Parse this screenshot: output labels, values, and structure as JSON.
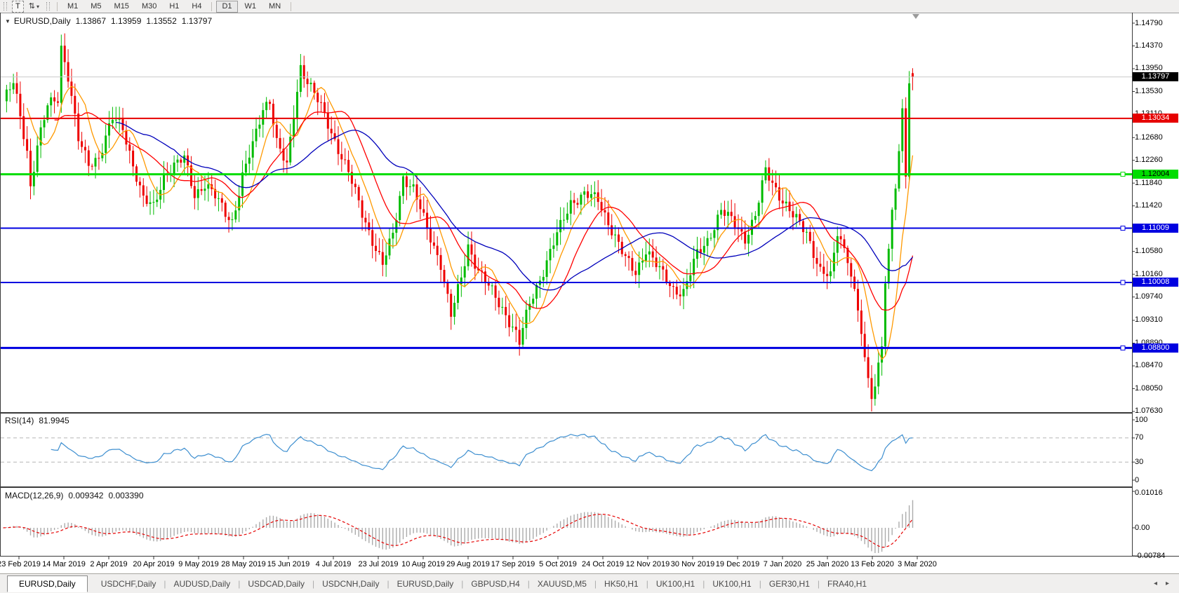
{
  "toolbar": {
    "text_tool_label": "T",
    "arrows_icon_glyph": "⇅",
    "caret_glyph": "▾",
    "timeframes": [
      "M1",
      "M5",
      "M15",
      "M30",
      "H1",
      "H4",
      "D1",
      "W1",
      "MN"
    ],
    "active_timeframe": "D1"
  },
  "chart": {
    "context_arrow_glyph": "▼",
    "symbol_label": "EURUSD,Daily",
    "ohlc": {
      "open": "1.13867",
      "high": "1.13959",
      "low": "1.13552",
      "close": "1.13797"
    },
    "price_ticks": [
      "1.14790",
      "1.14370",
      "1.13950",
      "1.13530",
      "1.13110",
      "1.12680",
      "1.12260",
      "1.11840",
      "1.11420",
      "1.11000",
      "1.10580",
      "1.10160",
      "1.09740",
      "1.09310",
      "1.08890",
      "1.08470",
      "1.08050",
      "1.07630"
    ],
    "bid_badge": {
      "value": 1.13797,
      "label": "1.13797",
      "bg": "#000000",
      "fg": "#ffffff",
      "line_color": "#c9c9c9"
    },
    "hlines": [
      {
        "value": 1.13034,
        "label": "1.13034",
        "color": "#e60000",
        "width": 2,
        "handle": false,
        "fg": "#ffffff"
      },
      {
        "value": 1.12004,
        "label": "1.12004",
        "color": "#00dd00",
        "width": 3,
        "handle": true,
        "fg": "#000000"
      },
      {
        "value": 1.11009,
        "label": "1.11009",
        "color": "#0000e0",
        "width": 2,
        "handle": true,
        "fg": "#ffffff"
      },
      {
        "value": 1.10008,
        "label": "1.10008",
        "color": "#0000e0",
        "width": 2,
        "handle": true,
        "fg": "#ffffff"
      },
      {
        "value": 1.088,
        "label": "1.08800",
        "color": "#0000e0",
        "width": 3,
        "handle": true,
        "fg": "#ffffff"
      }
    ],
    "time_labels": [
      "23 Feb 2019",
      "14 Mar 2019",
      "2 Apr 2019",
      "20 Apr 2019",
      "9 May 2019",
      "28 May 2019",
      "15 Jun 2019",
      "4 Jul 2019",
      "23 Jul 2019",
      "10 Aug 2019",
      "29 Aug 2019",
      "17 Sep 2019",
      "5 Oct 2019",
      "24 Oct 2019",
      "12 Nov 2019",
      "30 Nov 2019",
      "19 Dec 2019",
      "7 Jan 2020",
      "25 Jan 2020",
      "13 Feb 2020",
      "3 Mar 2020"
    ]
  },
  "rsi": {
    "name_label": "RSI(14)",
    "value": "81.9945",
    "period": 14,
    "levels": [
      70,
      30
    ],
    "line_color": "#3e8fd0",
    "axis_ticks": [
      {
        "value": 100,
        "label": "100"
      },
      {
        "value": 70,
        "label": "70"
      },
      {
        "value": 30,
        "label": "30"
      },
      {
        "value": 0,
        "label": "0"
      }
    ]
  },
  "macd": {
    "name_label": "MACD(12,26,9)",
    "value_main": "0.009342",
    "value_signal": "0.003390",
    "fast": 12,
    "slow": 26,
    "signal": 9,
    "histogram_color": "#ababab",
    "signal_color": "#e60000",
    "axis_ticks": [
      {
        "value": 0.01016,
        "label": "0.01016"
      },
      {
        "value": 0,
        "label": "0.00"
      },
      {
        "value": -0.00784,
        "label": "-0.00784"
      }
    ]
  },
  "tabs": {
    "items": [
      {
        "label": "EURUSD,Daily",
        "active": true
      },
      {
        "label": "USDCHF,Daily",
        "active": false
      },
      {
        "label": "AUDUSD,Daily",
        "active": false
      },
      {
        "label": "USDCAD,Daily",
        "active": false
      },
      {
        "label": "USDCNH,Daily",
        "active": false
      },
      {
        "label": "EURUSD,Daily",
        "active": false
      },
      {
        "label": "GBPUSD,H4",
        "active": false
      },
      {
        "label": "XAUUSD,M5",
        "active": false
      },
      {
        "label": "HK50,H1",
        "active": false
      },
      {
        "label": "UK100,H1",
        "active": false
      },
      {
        "label": "UK100,H1",
        "active": false
      },
      {
        "label": "GER30,H1",
        "active": false
      },
      {
        "label": "FRA40,H1",
        "active": false
      }
    ],
    "scroll_left_glyph": "◂",
    "scroll_right_glyph": "▸"
  },
  "chart_data": {
    "type": "candlestick",
    "symbol": "EURUSD",
    "timeframe": "Daily",
    "visible_date_range": [
      "23 Feb 2019",
      "3 Mar 2020"
    ],
    "price_axis_range": [
      1.0749,
      1.1496
    ],
    "num_candles": 267,
    "up_color": "#00bb00",
    "down_color": "#ee0000",
    "last_candle": {
      "open": 1.13867,
      "high": 1.13959,
      "low": 1.13552,
      "close": 1.13797
    },
    "close_keyframes": [
      [
        0,
        1.1335
      ],
      [
        3,
        1.1368
      ],
      [
        5,
        1.1308
      ],
      [
        7,
        1.1243
      ],
      [
        8,
        1.1179
      ],
      [
        10,
        1.1252
      ],
      [
        13,
        1.1326
      ],
      [
        16,
        1.1342
      ],
      [
        17,
        1.1436
      ],
      [
        19,
        1.1382
      ],
      [
        22,
        1.1263
      ],
      [
        25,
        1.1219
      ],
      [
        28,
        1.1233
      ],
      [
        32,
        1.1303
      ],
      [
        35,
        1.1286
      ],
      [
        38,
        1.1219
      ],
      [
        41,
        1.1153
      ],
      [
        44,
        1.1139
      ],
      [
        47,
        1.1199
      ],
      [
        50,
        1.1216
      ],
      [
        53,
        1.1229
      ],
      [
        56,
        1.1163
      ],
      [
        59,
        1.1183
      ],
      [
        62,
        1.1159
      ],
      [
        65,
        1.1129
      ],
      [
        67,
        1.1114
      ],
      [
        70,
        1.1196
      ],
      [
        73,
        1.1253
      ],
      [
        76,
        1.1323
      ],
      [
        78,
        1.1339
      ],
      [
        80,
        1.1259
      ],
      [
        83,
        1.1213
      ],
      [
        85,
        1.1312
      ],
      [
        87,
        1.1399
      ],
      [
        89,
        1.1373
      ],
      [
        93,
        1.1323
      ],
      [
        97,
        1.1263
      ],
      [
        101,
        1.1203
      ],
      [
        105,
        1.1129
      ],
      [
        109,
        1.1063
      ],
      [
        111,
        1.1033
      ],
      [
        114,
        1.1089
      ],
      [
        117,
        1.1196
      ],
      [
        120,
        1.1173
      ],
      [
        124,
        1.1099
      ],
      [
        128,
        1.1036
      ],
      [
        131,
        1.0939
      ],
      [
        134,
        1.1009
      ],
      [
        136,
        1.1069
      ],
      [
        139,
        1.1023
      ],
      [
        143,
        1.0983
      ],
      [
        147,
        1.0943
      ],
      [
        150,
        1.0906
      ],
      [
        151,
        1.0889
      ],
      [
        154,
        1.0963
      ],
      [
        158,
        1.1023
      ],
      [
        162,
        1.1089
      ],
      [
        166,
        1.1149
      ],
      [
        170,
        1.1163
      ],
      [
        174,
        1.1153
      ],
      [
        178,
        1.1099
      ],
      [
        182,
        1.1043
      ],
      [
        185,
        1.1019
      ],
      [
        188,
        1.1063
      ],
      [
        192,
        1.1023
      ],
      [
        196,
        1.0989
      ],
      [
        199,
        1.0983
      ],
      [
        203,
        1.1053
      ],
      [
        206,
        1.1079
      ],
      [
        210,
        1.1133
      ],
      [
        214,
        1.1109
      ],
      [
        217,
        1.1083
      ],
      [
        220,
        1.1123
      ],
      [
        223,
        1.1206
      ],
      [
        227,
        1.1163
      ],
      [
        231,
        1.1123
      ],
      [
        235,
        1.1093
      ],
      [
        239,
        1.1023
      ],
      [
        242,
        1.1009
      ],
      [
        244,
        1.1093
      ],
      [
        247,
        1.1049
      ],
      [
        250,
        1.0949
      ],
      [
        252,
        1.0863
      ],
      [
        254,
        1.0786
      ],
      [
        255,
        1.0809
      ],
      [
        256,
        1.0853
      ],
      [
        257,
        1.0883
      ],
      [
        258,
        1.0999
      ],
      [
        259,
        1.1063
      ],
      [
        260,
        1.1135
      ],
      [
        261,
        1.1174
      ],
      [
        262,
        1.1243
      ],
      [
        263,
        1.1322
      ],
      [
        264,
        1.1196
      ],
      [
        265,
        1.1368
      ],
      [
        266,
        1.138
      ]
    ],
    "moving_averages": [
      {
        "period": 8,
        "color": "#ff9900"
      },
      {
        "period": 16,
        "color": "#ff0000"
      },
      {
        "period": 34,
        "color": "#0000bb"
      }
    ],
    "horizontal_levels": [
      1.13034,
      1.12004,
      1.11009,
      1.10008,
      1.088
    ],
    "indicators": [
      {
        "name": "RSI",
        "period": 14,
        "current": 81.9945
      },
      {
        "name": "MACD",
        "params": [
          12,
          26,
          9
        ],
        "current_main": 0.009342,
        "current_signal": 0.00339
      }
    ]
  }
}
